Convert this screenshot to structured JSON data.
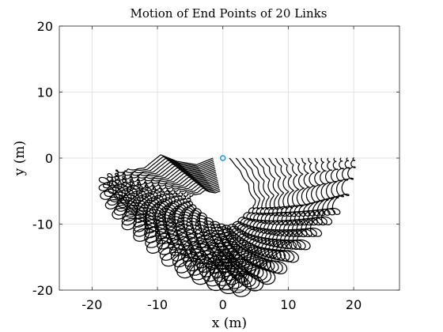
{
  "chart_data": {
    "type": "line",
    "title": "Motion of End Points of 20 Links",
    "xlabel": "x (m)",
    "ylabel": "y (m)",
    "xlim": [
      -25,
      27
    ],
    "ylim": [
      -20,
      20
    ],
    "xticks": [
      -20,
      -10,
      0,
      10,
      20
    ],
    "yticks": [
      -20,
      -10,
      0,
      10,
      20
    ],
    "grid": true,
    "line_color": "#000000",
    "marker_color": "#1f9bd6",
    "marker_point": [
      0,
      0
    ],
    "n_links": 20,
    "link_length": 1,
    "series_note": "20 looping trajectories; the outermost starts at (20,0), sweeps down to about (3,-19.5), reaches about (-18,-3.5) on the left and returns toward the origin; inner links start at (k,0)",
    "extents": {
      "x_min": -18.3,
      "x_max": 20,
      "y_min": -19.6,
      "y_max": 1.7
    }
  }
}
